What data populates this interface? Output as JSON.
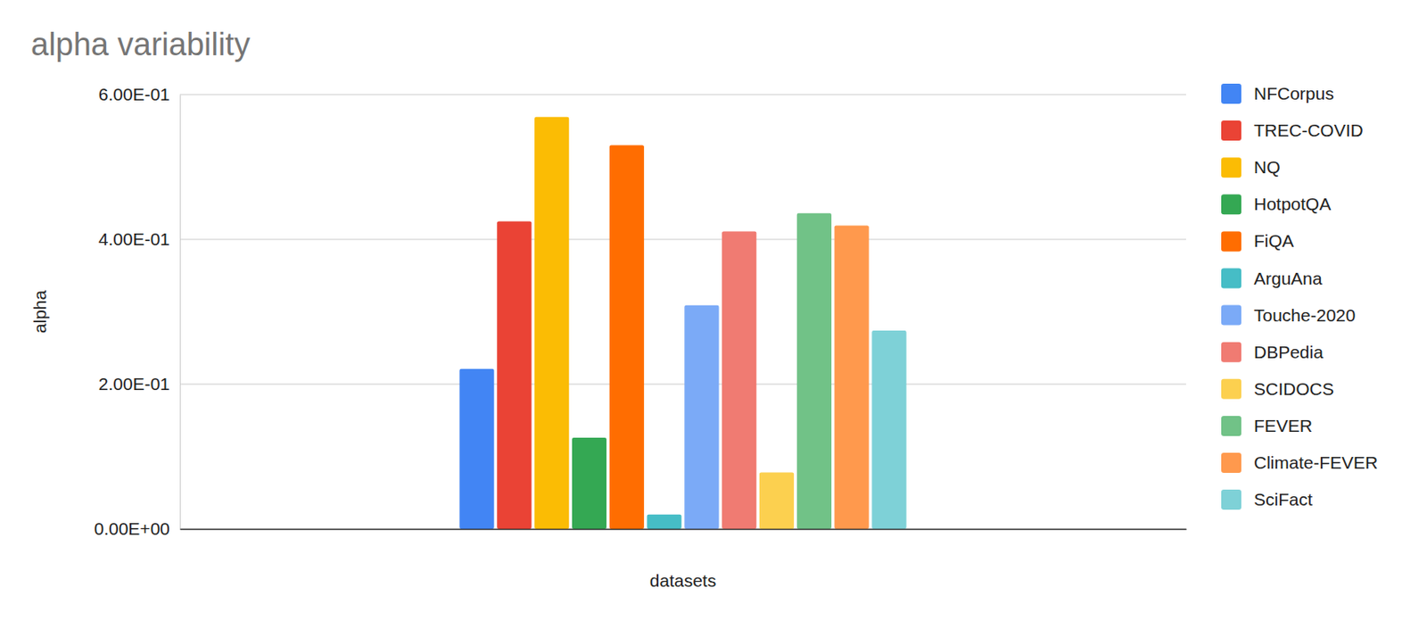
{
  "chart_data": {
    "type": "bar",
    "title": "alpha variability",
    "x_label": "datasets",
    "y_label": "alpha",
    "categories": [
      null
    ],
    "series": [
      {
        "name": "NFCorpus",
        "color": "#4285f4",
        "values": [
          0.221
        ]
      },
      {
        "name": "TREC-COVID",
        "color": "#ea4335",
        "values": [
          0.425
        ]
      },
      {
        "name": "NQ",
        "color": "#fbbc04",
        "values": [
          0.569
        ]
      },
      {
        "name": "HotpotQA",
        "color": "#34a853",
        "values": [
          0.126
        ]
      },
      {
        "name": "FiQA",
        "color": "#ff6d01",
        "values": [
          0.53
        ]
      },
      {
        "name": "ArguAna",
        "color": "#46bdc6",
        "values": [
          0.02
        ]
      },
      {
        "name": "Touche-2020",
        "color": "#7baaf7",
        "values": [
          0.309
        ]
      },
      {
        "name": "DBPedia",
        "color": "#f07b72",
        "values": [
          0.411
        ]
      },
      {
        "name": "SCIDOCS",
        "color": "#fcd04f",
        "values": [
          0.078
        ]
      },
      {
        "name": "FEVER",
        "color": "#71c287",
        "values": [
          0.436
        ]
      },
      {
        "name": "Climate-FEVER",
        "color": "#ff994d",
        "values": [
          0.419
        ]
      },
      {
        "name": "SciFact",
        "color": "#7ed1d7",
        "values": [
          0.274
        ]
      }
    ],
    "ylim": [
      0,
      0.6
    ],
    "yticks": [
      {
        "value": 0,
        "label": "0.00E+00"
      },
      {
        "value": 0.2,
        "label": "2.00E-01"
      },
      {
        "value": 0.4,
        "label": "4.00E-01"
      },
      {
        "value": 0.6,
        "label": "6.00E-01"
      }
    ],
    "grid": true,
    "legend": "right",
    "tick_labels": "y"
  }
}
